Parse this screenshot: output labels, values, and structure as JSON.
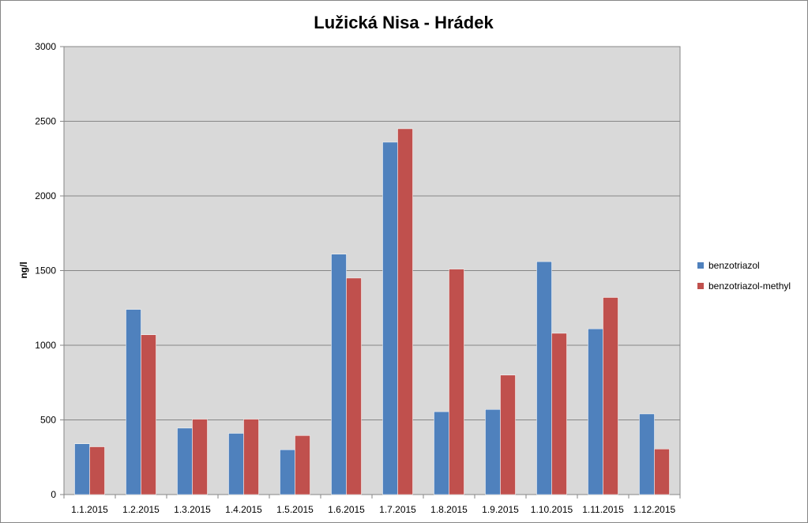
{
  "chart_data": {
    "type": "bar",
    "title": "Lužická Nisa - Hrádek",
    "xlabel": "",
    "ylabel": "ng/l",
    "ylim": [
      0,
      3000
    ],
    "yticks": [
      "0",
      "500",
      "1000",
      "1500",
      "2000",
      "2500",
      "3000"
    ],
    "ytick_values": [
      0,
      500,
      1000,
      1500,
      2000,
      2500,
      3000
    ],
    "grid": true,
    "legend_position": "right",
    "plot_background": "#D9D9D9",
    "categories": [
      "1.1.2015",
      "1.2.2015",
      "1.3.2015",
      "1.4.2015",
      "1.5.2015",
      "1.6.2015",
      "1.7.2015",
      "1.8.2015",
      "1.9.2015",
      "1.10.2015",
      "1.11.2015",
      "1.12.2015"
    ],
    "series": [
      {
        "name": "benzotriazol",
        "color": "#4F81BD",
        "values": [
          340,
          1240,
          445,
          410,
          300,
          1610,
          2360,
          555,
          570,
          1560,
          1110,
          540
        ]
      },
      {
        "name": "benzotriazol-methyl",
        "color": "#C0504D",
        "values": [
          320,
          1070,
          505,
          505,
          395,
          1450,
          2450,
          1510,
          800,
          1080,
          1320,
          305
        ]
      }
    ]
  }
}
